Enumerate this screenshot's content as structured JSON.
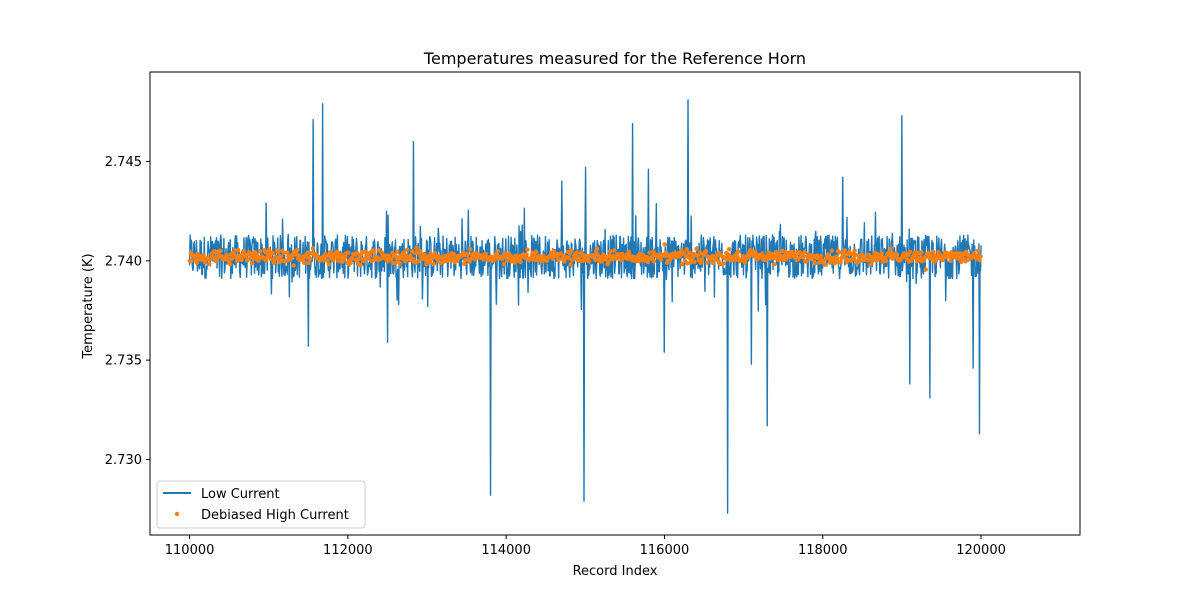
{
  "chart_data": {
    "type": "line",
    "title": "Temperatures measured for the Reference Horn",
    "xlabel": "Record Index",
    "ylabel": "Temperature (K)",
    "xlim": [
      109500,
      121250
    ],
    "ylim": [
      2.7262,
      2.7495
    ],
    "x_ticks": [
      110000,
      112000,
      114000,
      116000,
      118000,
      120000
    ],
    "x_tick_labels": [
      "110000",
      "112000",
      "114000",
      "116000",
      "118000",
      "120000"
    ],
    "y_ticks": [
      2.73,
      2.735,
      2.74,
      2.745
    ],
    "y_tick_labels": [
      "2.730",
      "2.735",
      "2.740",
      "2.745"
    ],
    "grid": false,
    "legend_position": "lower-left",
    "series": [
      {
        "name": "Low Current",
        "style": "line",
        "color": "#1f77b4",
        "band_min": 2.7391,
        "band_max": 2.7413,
        "mean": 2.7402,
        "x_range": [
          110000,
          120000
        ],
        "spikes": [
          {
            "x": 111500,
            "y": 2.7357
          },
          {
            "x": 111560,
            "y": 2.7471
          },
          {
            "x": 111680,
            "y": 2.7479
          },
          {
            "x": 112500,
            "y": 2.7359
          },
          {
            "x": 112830,
            "y": 2.746
          },
          {
            "x": 113800,
            "y": 2.7282
          },
          {
            "x": 114700,
            "y": 2.744
          },
          {
            "x": 114980,
            "y": 2.7279
          },
          {
            "x": 115000,
            "y": 2.7447
          },
          {
            "x": 115600,
            "y": 2.7469
          },
          {
            "x": 115800,
            "y": 2.7446
          },
          {
            "x": 116000,
            "y": 2.7354
          },
          {
            "x": 116300,
            "y": 2.7481
          },
          {
            "x": 116800,
            "y": 2.7273
          },
          {
            "x": 117100,
            "y": 2.7348
          },
          {
            "x": 117300,
            "y": 2.7317
          },
          {
            "x": 118250,
            "y": 2.7442
          },
          {
            "x": 119000,
            "y": 2.7473
          },
          {
            "x": 119100,
            "y": 2.7338
          },
          {
            "x": 119350,
            "y": 2.7331
          },
          {
            "x": 119900,
            "y": 2.7346
          },
          {
            "x": 119980,
            "y": 2.7313
          }
        ]
      },
      {
        "name": "Debiased High Current",
        "style": "points",
        "color": "#ff7f0e",
        "mean": 2.7402,
        "spread": 0.0003,
        "x_range": [
          110000,
          120000
        ]
      }
    ]
  }
}
